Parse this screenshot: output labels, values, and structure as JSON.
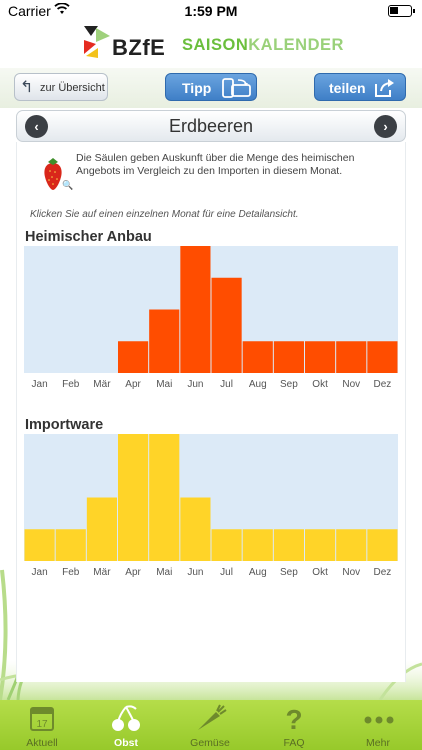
{
  "status": {
    "carrier": "Carrier",
    "time": "1:59 PM"
  },
  "header": {
    "logo": "BZfE",
    "title_bold": "SAISON",
    "title_light": "KALENDER"
  },
  "toolbar": {
    "back_label": "zur Übersicht",
    "tip_label": "Tipp",
    "share_label": "teilen"
  },
  "product": {
    "name": "Erdbeeren"
  },
  "description": "Die Säulen geben Auskunft über die Menge des heimischen Angebots im Vergleich zu den Importen in diesem Monat.",
  "hint": "Klicken Sie auf einen einzelnen Monat für eine Detailansicht.",
  "colors": {
    "domestic": "#ff4d00",
    "import": "#ffd428",
    "chart_bg": "#dceaf7",
    "tabbar": "#a6d33a"
  },
  "chart_data": [
    {
      "type": "bar",
      "title": "Heimischer Anbau",
      "categories": [
        "Jan",
        "Feb",
        "Mär",
        "Apr",
        "Mai",
        "Jun",
        "Jul",
        "Aug",
        "Sep",
        "Okt",
        "Nov",
        "Dez"
      ],
      "values": [
        0,
        0,
        0,
        1,
        2,
        4,
        3,
        1,
        1,
        1,
        1,
        1
      ],
      "ylim": [
        0,
        4
      ]
    },
    {
      "type": "bar",
      "title": "Importware",
      "categories": [
        "Jan",
        "Feb",
        "Mär",
        "Apr",
        "Mai",
        "Jun",
        "Jul",
        "Aug",
        "Sep",
        "Okt",
        "Nov",
        "Dez"
      ],
      "values": [
        1,
        1,
        2,
        4,
        4,
        2,
        1,
        1,
        1,
        1,
        1,
        1
      ],
      "ylim": [
        0,
        4
      ]
    }
  ],
  "tabs": [
    {
      "label": "Aktuell",
      "icon": "calendar-icon"
    },
    {
      "label": "Obst",
      "icon": "cherry-icon"
    },
    {
      "label": "Gemüse",
      "icon": "carrot-icon"
    },
    {
      "label": "FAQ",
      "icon": "question-icon"
    },
    {
      "label": "Mehr",
      "icon": "more-icon"
    }
  ],
  "calendar_day": "17"
}
